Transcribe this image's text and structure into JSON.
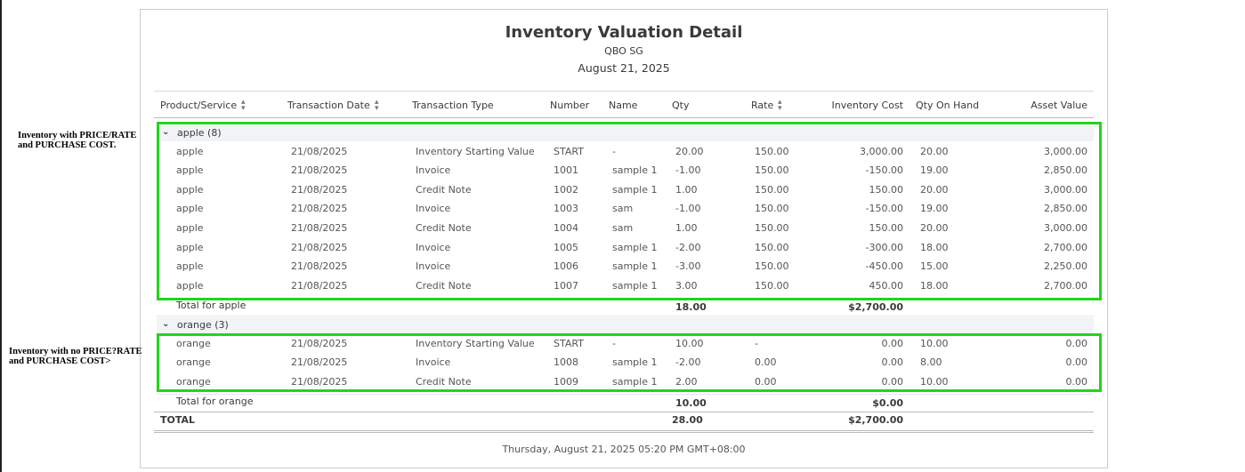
{
  "header": {
    "title": "Inventory Valuation Detail",
    "company": "QBO SG",
    "date": "August 21, 2025"
  },
  "annotations": [
    [
      "Inventory with PRICE/RATE",
      "and PURCHASE COST."
    ],
    [
      "Inventory with no PRICE?RATE",
      "and PURCHASE COST>"
    ]
  ],
  "table": {
    "columns": [
      "Product/Service",
      "Transaction Date",
      "Transaction Type",
      "Number",
      "Name",
      "Qty",
      "Rate",
      "Inventory Cost",
      "Qty On Hand",
      "Asset Value"
    ],
    "groups": [
      {
        "label": "apple (8)",
        "rows": [
          [
            "apple",
            "21/08/2025",
            "Inventory Starting Value",
            "START",
            "-",
            "20.00",
            "150.00",
            "3,000.00",
            "20.00",
            "3,000.00"
          ],
          [
            "apple",
            "21/08/2025",
            "Invoice",
            "1001",
            "sample 1",
            "-1.00",
            "150.00",
            "-150.00",
            "19.00",
            "2,850.00"
          ],
          [
            "apple",
            "21/08/2025",
            "Credit Note",
            "1002",
            "sample 1",
            "1.00",
            "150.00",
            "150.00",
            "20.00",
            "3,000.00"
          ],
          [
            "apple",
            "21/08/2025",
            "Invoice",
            "1003",
            "sam",
            "-1.00",
            "150.00",
            "-150.00",
            "19.00",
            "2,850.00"
          ],
          [
            "apple",
            "21/08/2025",
            "Credit Note",
            "1004",
            "sam",
            "1.00",
            "150.00",
            "150.00",
            "20.00",
            "3,000.00"
          ],
          [
            "apple",
            "21/08/2025",
            "Invoice",
            "1005",
            "sample 1",
            "-2.00",
            "150.00",
            "-300.00",
            "18.00",
            "2,700.00"
          ],
          [
            "apple",
            "21/08/2025",
            "Invoice",
            "1006",
            "sample 1",
            "-3.00",
            "150.00",
            "-450.00",
            "15.00",
            "2,250.00"
          ],
          [
            "apple",
            "21/08/2025",
            "Credit Note",
            "1007",
            "sample 1",
            "3.00",
            "150.00",
            "450.00",
            "18.00",
            "2,700.00"
          ]
        ],
        "total": {
          "label": "Total for apple",
          "qty": "18.00",
          "inventory_cost": "$2,700.00"
        }
      },
      {
        "label": "orange (3)",
        "rows": [
          [
            "orange",
            "21/08/2025",
            "Inventory Starting Value",
            "START",
            "-",
            "10.00",
            "-",
            "0.00",
            "10.00",
            "0.00"
          ],
          [
            "orange",
            "21/08/2025",
            "Invoice",
            "1008",
            "sample 1",
            "-2.00",
            "0.00",
            "0.00",
            "8.00",
            "0.00"
          ],
          [
            "orange",
            "21/08/2025",
            "Credit Note",
            "1009",
            "sample 1",
            "2.00",
            "0.00",
            "0.00",
            "10.00",
            "0.00"
          ]
        ],
        "total": {
          "label": "Total for orange",
          "qty": "10.00",
          "inventory_cost": "$0.00"
        }
      }
    ],
    "grand_total": {
      "label": "TOTAL",
      "qty": "28.00",
      "inventory_cost": "$2,700.00"
    }
  },
  "footer": "Thursday, August 21, 2025 05:20 PM GMT+08:00"
}
